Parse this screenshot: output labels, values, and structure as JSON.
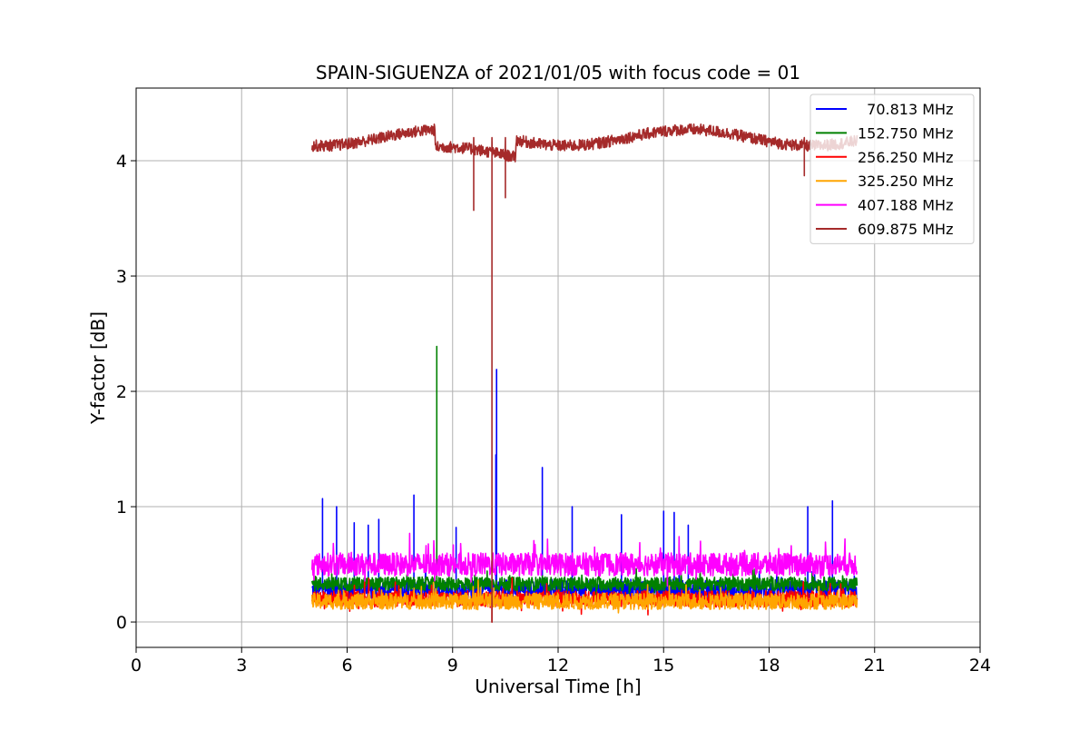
{
  "chart_data": {
    "type": "line",
    "title": "SPAIN-SIGUENZA of 2021/01/05 with focus code = 01",
    "xlabel": "Universal Time [h]",
    "ylabel": "Y-factor [dB]",
    "xlim": [
      0,
      24
    ],
    "ylim": [
      -0.22,
      4.63
    ],
    "xticks": [
      0,
      3,
      6,
      9,
      12,
      15,
      18,
      21,
      24
    ],
    "yticks": [
      0,
      1,
      2,
      3,
      4
    ],
    "grid": true,
    "legend_position": "upper-right",
    "series": [
      {
        "name": "  70.813 MHz",
        "color": "#0000ff",
        "baseline": 0.28,
        "noise": 0.08,
        "start": 5.0,
        "end": 20.5,
        "spikes": [
          [
            5.3,
            1.07
          ],
          [
            5.7,
            1.0
          ],
          [
            6.2,
            0.86
          ],
          [
            6.6,
            0.84
          ],
          [
            6.9,
            0.89
          ],
          [
            7.9,
            1.1
          ],
          [
            9.1,
            0.82
          ],
          [
            10.25,
            2.19
          ],
          [
            10.23,
            1.45
          ],
          [
            11.55,
            1.34
          ],
          [
            12.4,
            1.0
          ],
          [
            13.8,
            0.93
          ],
          [
            15.0,
            0.96
          ],
          [
            15.3,
            0.95
          ],
          [
            15.7,
            0.84
          ],
          [
            19.1,
            1.0
          ],
          [
            19.8,
            1.05
          ]
        ]
      },
      {
        "name": "152.750 MHz",
        "color": "#008000",
        "baseline": 0.33,
        "noise": 0.06,
        "start": 5.0,
        "end": 20.5,
        "spikes": [
          [
            8.55,
            2.39
          ]
        ]
      },
      {
        "name": "256.250 MHz",
        "color": "#ff0000",
        "baseline": 0.2,
        "noise": 0.07,
        "start": 5.0,
        "end": 20.5,
        "spikes": [
          [
            10.12,
            0.0
          ]
        ]
      },
      {
        "name": "325.250 MHz",
        "color": "#ffa500",
        "baseline": 0.18,
        "noise": 0.07,
        "start": 5.0,
        "end": 20.5,
        "spikes": []
      },
      {
        "name": "407.188 MHz",
        "color": "#ff00ff",
        "baseline": 0.5,
        "noise": 0.1,
        "start": 5.0,
        "end": 20.5,
        "spikes": []
      },
      {
        "name": "609.875 MHz",
        "color": "#a52a2a",
        "baseline": 4.2,
        "noise": 0.05,
        "start": 5.0,
        "end": 20.5,
        "spikes": [
          [
            9.6,
            3.57
          ],
          [
            10.12,
            0.0
          ],
          [
            10.5,
            3.68
          ],
          [
            19.0,
            3.87
          ]
        ]
      }
    ]
  }
}
